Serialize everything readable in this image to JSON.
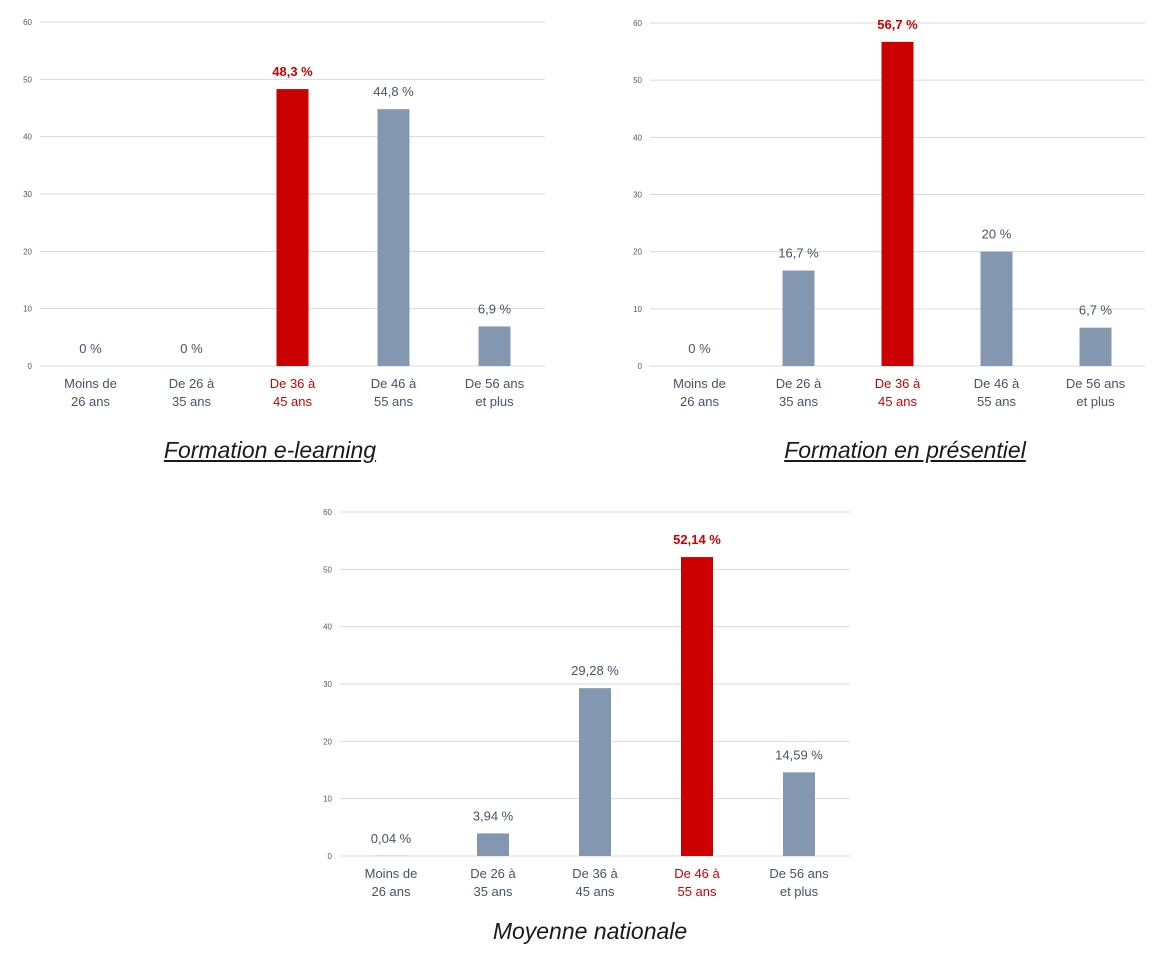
{
  "colors": {
    "bar": "#8497b0",
    "highlight": "#cc0000",
    "text": "#44546a",
    "grid": "#d9d9d9"
  },
  "chart_data": [
    {
      "type": "bar",
      "title": "Formation e-learning",
      "ylim": [
        0,
        60
      ],
      "yticks": [
        0,
        10,
        20,
        30,
        40,
        50,
        60
      ],
      "categories": [
        [
          "Moins de",
          "26 ans"
        ],
        [
          "De 26 à",
          "35 ans"
        ],
        [
          "De 36 à",
          "45 ans"
        ],
        [
          "De 46 à",
          "55 ans"
        ],
        [
          "De 56 ans",
          "et plus"
        ]
      ],
      "values": [
        0,
        0,
        48.3,
        44.8,
        6.9
      ],
      "labels": [
        "0 %",
        "0 %",
        "48,3 %",
        "44,8 %",
        "6,9 %"
      ],
      "highlight_index": 2,
      "grid": true
    },
    {
      "type": "bar",
      "title": "Formation en présentiel",
      "ylim": [
        0,
        60
      ],
      "yticks": [
        0,
        10,
        20,
        30,
        40,
        50,
        60
      ],
      "categories": [
        [
          "Moins de",
          "26 ans"
        ],
        [
          "De 26 à",
          "35 ans"
        ],
        [
          "De 36 à",
          "45 ans"
        ],
        [
          "De 46 à",
          "55 ans"
        ],
        [
          "De 56 ans",
          "et plus"
        ]
      ],
      "values": [
        0,
        16.7,
        56.7,
        20,
        6.7
      ],
      "labels": [
        "0 %",
        "16,7 %",
        "56,7 %",
        "20 %",
        "6,7 %"
      ],
      "highlight_index": 2,
      "grid": true
    },
    {
      "type": "bar",
      "title": "Moyenne nationale",
      "ylim": [
        0,
        60
      ],
      "yticks": [
        0,
        10,
        20,
        30,
        40,
        50,
        60
      ],
      "categories": [
        [
          "Moins de",
          "26 ans"
        ],
        [
          "De 26 à",
          "35 ans"
        ],
        [
          "De 36 à",
          "45 ans"
        ],
        [
          "De 46 à",
          "55 ans"
        ],
        [
          "De 56 ans",
          "et plus"
        ]
      ],
      "values": [
        0.04,
        3.94,
        29.28,
        52.14,
        14.59
      ],
      "labels": [
        "0,04 %",
        "3,94 %",
        "29,28 %",
        "52,14 %",
        "14,59 %"
      ],
      "highlight_index": 3,
      "grid": true
    }
  ]
}
